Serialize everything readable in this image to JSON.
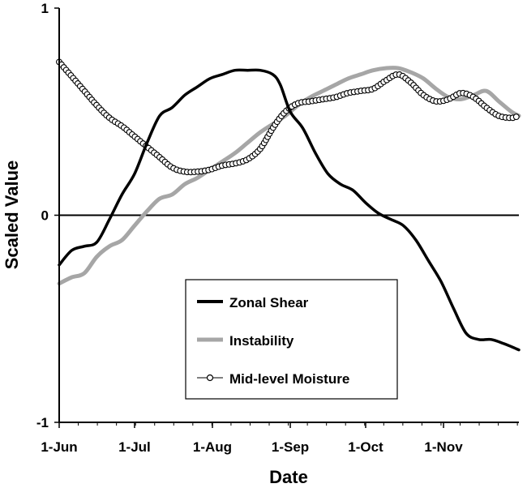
{
  "chart_data": {
    "type": "line",
    "title": "",
    "xlabel": "Date",
    "ylabel": "Scaled Value",
    "xlim": [
      0,
      183
    ],
    "ylim": [
      -1,
      1
    ],
    "x_ticks": [
      {
        "label": "1-Jun",
        "day": 0
      },
      {
        "label": "1-Jul",
        "day": 30
      },
      {
        "label": "1-Aug",
        "day": 61
      },
      {
        "label": "1-Sep",
        "day": 92
      },
      {
        "label": "1-Oct",
        "day": 122
      },
      {
        "label": "1-Nov",
        "day": 153
      }
    ],
    "y_ticks": [
      {
        "label": "-1",
        "value": -1
      },
      {
        "label": "0",
        "value": 0
      },
      {
        "label": "1",
        "value": 1
      }
    ],
    "zero_line": true,
    "legend_position": "bottom-center",
    "series": [
      {
        "name": "Zonal Shear",
        "style": "solid-thick",
        "color": "#000000",
        "x": [
          0,
          5,
          10,
          15,
          20,
          25,
          30,
          35,
          40,
          45,
          50,
          55,
          60,
          65,
          70,
          75,
          80,
          85,
          88,
          92,
          97,
          102,
          107,
          112,
          117,
          122,
          127,
          132,
          137,
          142,
          147,
          152,
          157,
          162,
          167,
          172,
          177,
          183
        ],
        "values": [
          -0.24,
          -0.17,
          -0.15,
          -0.13,
          -0.02,
          0.1,
          0.2,
          0.35,
          0.48,
          0.52,
          0.58,
          0.62,
          0.66,
          0.68,
          0.7,
          0.7,
          0.7,
          0.68,
          0.63,
          0.5,
          0.42,
          0.3,
          0.2,
          0.15,
          0.12,
          0.06,
          0.01,
          -0.02,
          -0.05,
          -0.12,
          -0.22,
          -0.32,
          -0.45,
          -0.57,
          -0.6,
          -0.6,
          -0.62,
          -0.65
        ]
      },
      {
        "name": "Instability",
        "style": "solid-gray",
        "color": "#a6a6a6",
        "x": [
          0,
          5,
          10,
          15,
          20,
          25,
          30,
          35,
          40,
          45,
          50,
          55,
          60,
          65,
          70,
          75,
          80,
          85,
          90,
          95,
          100,
          105,
          110,
          115,
          120,
          125,
          130,
          135,
          140,
          145,
          150,
          155,
          160,
          165,
          170,
          175,
          180,
          183
        ],
        "values": [
          -0.33,
          -0.3,
          -0.28,
          -0.2,
          -0.15,
          -0.12,
          -0.05,
          0.02,
          0.08,
          0.1,
          0.15,
          0.18,
          0.22,
          0.26,
          0.3,
          0.35,
          0.4,
          0.44,
          0.48,
          0.53,
          0.57,
          0.6,
          0.63,
          0.66,
          0.68,
          0.7,
          0.71,
          0.71,
          0.69,
          0.66,
          0.61,
          0.57,
          0.56,
          0.58,
          0.6,
          0.55,
          0.5,
          0.48
        ]
      },
      {
        "name": "Mid-level Moisture",
        "style": "line-with-open-circles",
        "color": "#000000",
        "x": [
          0,
          5,
          10,
          15,
          20,
          25,
          30,
          35,
          40,
          45,
          50,
          55,
          60,
          65,
          70,
          75,
          80,
          85,
          90,
          95,
          100,
          105,
          110,
          115,
          120,
          125,
          130,
          135,
          140,
          145,
          150,
          155,
          160,
          165,
          170,
          175,
          180,
          183
        ],
        "values": [
          0.74,
          0.67,
          0.6,
          0.53,
          0.47,
          0.43,
          0.38,
          0.33,
          0.28,
          0.23,
          0.21,
          0.21,
          0.22,
          0.24,
          0.25,
          0.27,
          0.32,
          0.42,
          0.5,
          0.54,
          0.55,
          0.56,
          0.57,
          0.59,
          0.6,
          0.61,
          0.65,
          0.68,
          0.64,
          0.58,
          0.55,
          0.56,
          0.59,
          0.57,
          0.52,
          0.48,
          0.47,
          0.48
        ]
      }
    ]
  }
}
